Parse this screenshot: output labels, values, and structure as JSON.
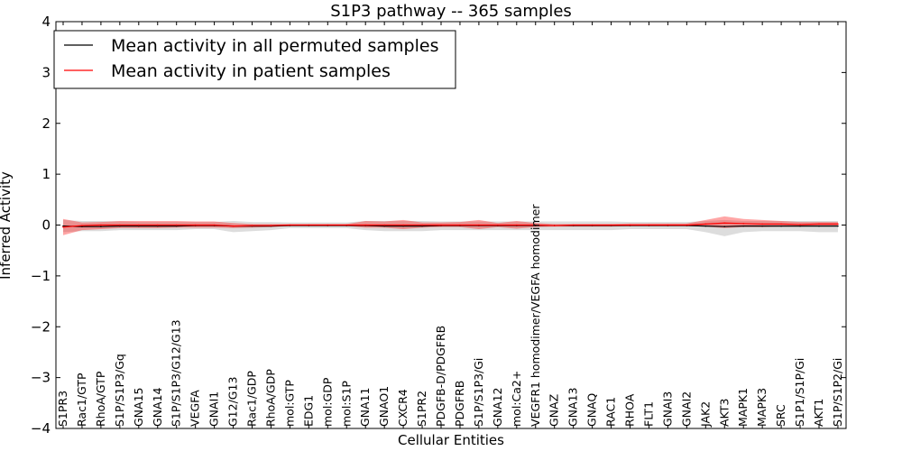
{
  "chart_data": {
    "type": "line",
    "title": "S1P3 pathway -- 365 samples",
    "xlabel": "Cellular Entities",
    "ylabel": "Inferred Activity",
    "ylim": [
      -4,
      4
    ],
    "yticks": [
      "−4",
      "−3",
      "−2",
      "−1",
      "0",
      "1",
      "2",
      "3",
      "4"
    ],
    "grid": false,
    "legend_position": "top-left",
    "categories": [
      "S1PR3",
      "Rac1/GTP",
      "RhoA/GTP",
      "S1P/S1P3/Gq",
      "GNA15",
      "GNA14",
      "S1P/S1P3/G12/G13",
      "VEGFA",
      "GNAI1",
      "G12/G13",
      "Rac1/GDP",
      "RhoA/GDP",
      "mol:GTP",
      "EDG1",
      "mol:GDP",
      "mol:S1P",
      "GNA11",
      "GNAO1",
      "CXCR4",
      "S1PR2",
      "PDGFB-D/PDGFRB",
      "PDGFRB",
      "S1P/S1P3/Gi",
      "GNA12",
      "mol:Ca2+",
      "VEGFR1 homodimer/VEGFA homodimer",
      "GNAZ",
      "GNA13",
      "GNAQ",
      "RAC1",
      "RHOA",
      "FLT1",
      "GNAI3",
      "GNAI2",
      "JAK2",
      "AKT3",
      "MAPK1",
      "MAPK3",
      "SRC",
      "S1P1/S1P/Gi",
      "AKT1",
      "S1P/S1P2/Gi"
    ],
    "series": [
      {
        "name": "Mean activity in all permuted samples",
        "color": "#000000",
        "values": [
          -0.02,
          -0.03,
          -0.03,
          -0.02,
          -0.02,
          -0.02,
          -0.02,
          -0.01,
          -0.01,
          -0.02,
          -0.02,
          -0.02,
          -0.01,
          -0.01,
          -0.01,
          -0.01,
          -0.01,
          -0.02,
          -0.02,
          -0.02,
          -0.01,
          -0.01,
          -0.01,
          -0.01,
          -0.01,
          -0.01,
          -0.01,
          -0.01,
          -0.01,
          -0.01,
          -0.01,
          -0.01,
          -0.01,
          -0.01,
          -0.02,
          -0.03,
          -0.02,
          -0.02,
          -0.02,
          -0.02,
          -0.02,
          -0.02
        ],
        "band_lower": [
          -0.14,
          -0.12,
          -0.12,
          -0.1,
          -0.1,
          -0.1,
          -0.1,
          -0.08,
          -0.08,
          -0.14,
          -0.12,
          -0.1,
          -0.06,
          -0.06,
          -0.06,
          -0.06,
          -0.1,
          -0.12,
          -0.12,
          -0.12,
          -0.1,
          -0.1,
          -0.1,
          -0.1,
          -0.1,
          -0.1,
          -0.1,
          -0.1,
          -0.1,
          -0.1,
          -0.08,
          -0.08,
          -0.08,
          -0.08,
          -0.14,
          -0.22,
          -0.14,
          -0.12,
          -0.12,
          -0.12,
          -0.14,
          -0.14
        ],
        "band_upper": [
          0.1,
          0.08,
          0.08,
          0.07,
          0.06,
          0.06,
          0.06,
          0.06,
          0.06,
          0.08,
          0.06,
          0.06,
          0.05,
          0.05,
          0.05,
          0.05,
          0.08,
          0.08,
          0.08,
          0.08,
          0.07,
          0.07,
          0.07,
          0.07,
          0.07,
          0.07,
          0.07,
          0.07,
          0.07,
          0.07,
          0.06,
          0.06,
          0.06,
          0.06,
          0.08,
          0.1,
          0.08,
          0.08,
          0.08,
          0.08,
          0.08,
          0.08
        ]
      },
      {
        "name": "Mean activity in patient samples",
        "color": "#ff0000",
        "values": [
          -0.04,
          -0.01,
          0.0,
          0.0,
          0.0,
          0.0,
          0.0,
          0.0,
          0.0,
          -0.02,
          -0.01,
          -0.01,
          0.0,
          0.0,
          0.0,
          0.0,
          0.0,
          0.0,
          0.0,
          0.0,
          0.0,
          0.0,
          0.0,
          0.0,
          0.0,
          0.0,
          -0.01,
          0.0,
          0.0,
          0.0,
          0.0,
          0.0,
          0.0,
          0.0,
          0.02,
          0.04,
          0.03,
          0.02,
          0.02,
          0.01,
          0.02,
          0.02
        ],
        "band_lower": [
          -0.2,
          -0.1,
          -0.08,
          -0.06,
          -0.06,
          -0.06,
          -0.05,
          -0.05,
          -0.05,
          -0.06,
          -0.05,
          -0.04,
          -0.02,
          -0.02,
          -0.02,
          -0.02,
          -0.05,
          -0.05,
          -0.08,
          -0.05,
          -0.04,
          -0.04,
          -0.08,
          -0.04,
          -0.07,
          -0.04,
          -0.03,
          -0.03,
          -0.03,
          -0.03,
          -0.02,
          -0.02,
          -0.02,
          -0.02,
          -0.03,
          -0.06,
          -0.04,
          -0.04,
          -0.03,
          -0.03,
          -0.02,
          -0.02
        ],
        "band_upper": [
          0.12,
          0.05,
          0.06,
          0.08,
          0.08,
          0.08,
          0.08,
          0.07,
          0.07,
          0.04,
          0.02,
          0.02,
          0.02,
          0.02,
          0.02,
          0.02,
          0.08,
          0.07,
          0.1,
          0.05,
          0.05,
          0.06,
          0.1,
          0.04,
          0.08,
          0.04,
          0.02,
          0.02,
          0.02,
          0.02,
          0.03,
          0.03,
          0.03,
          0.03,
          0.1,
          0.17,
          0.12,
          0.1,
          0.08,
          0.06,
          0.06,
          0.06
        ]
      }
    ]
  }
}
